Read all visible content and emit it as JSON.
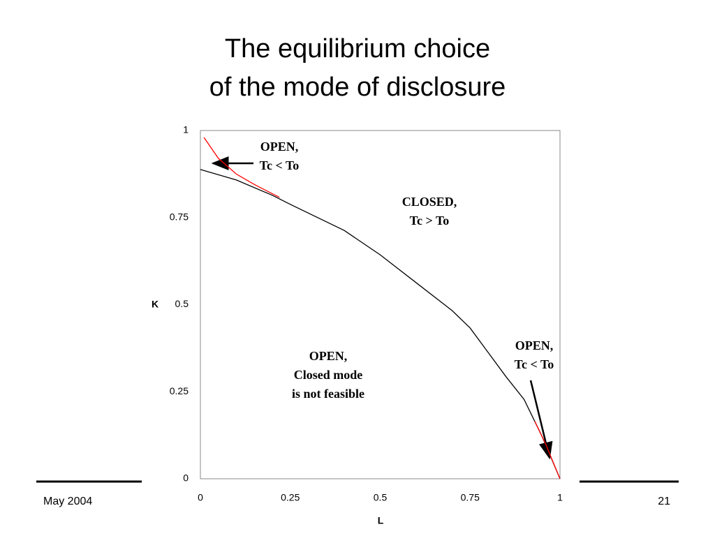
{
  "chart_data": {
    "type": "line",
    "title": [
      "The equilibrium choice",
      "of the mode of disclosure"
    ],
    "x_label": "L",
    "y_label": "K",
    "xlim": [
      0,
      1
    ],
    "ylim": [
      0,
      1
    ],
    "xticks": [
      0,
      0.25,
      0.5,
      0.75,
      1
    ],
    "yticks": [
      0,
      0.25,
      0.5,
      0.75,
      1
    ],
    "series": [
      {
        "color": "#000000",
        "x": [
          0,
          0.1,
          0.2,
          0.25,
          0.4,
          0.5,
          0.6,
          0.7,
          0.75,
          0.8,
          0.85,
          0.9,
          0.95,
          1
        ],
        "values": [
          0.888,
          0.858,
          0.814,
          0.788,
          0.713,
          0.643,
          0.563,
          0.483,
          0.433,
          0.363,
          0.293,
          0.228,
          0.122,
          0
        ]
      },
      {
        "color": "#ff0000",
        "x": [
          0.01,
          0.05,
          0.1,
          0.15,
          0.22,
          null,
          0.93,
          0.96,
          1
        ],
        "values": [
          0.98,
          0.92,
          0.875,
          0.845,
          0.808,
          null,
          0.165,
          0.1,
          0
        ]
      }
    ],
    "annotations": [
      [
        "OPEN,",
        "Tc < To"
      ],
      [
        "CLOSED,",
        "Tc > To"
      ],
      [
        "OPEN,",
        "Closed mode",
        "is not feasible"
      ],
      [
        "OPEN,",
        "Tc < To"
      ]
    ]
  },
  "footer": {
    "date": "May 2004",
    "page": "21"
  }
}
